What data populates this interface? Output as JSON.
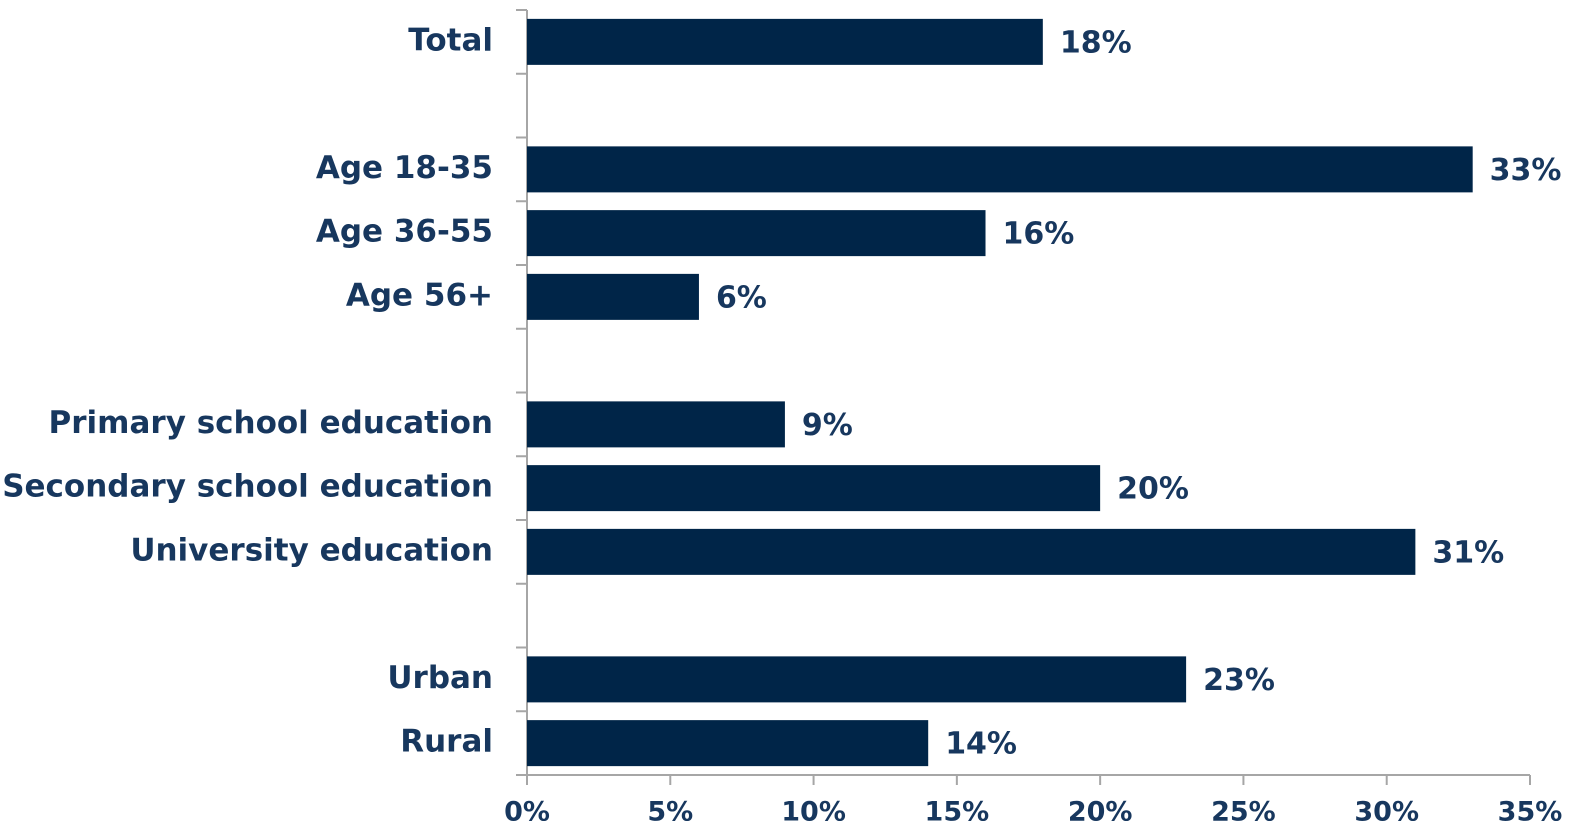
{
  "chart_data": {
    "type": "bar",
    "orientation": "horizontal",
    "categories": [
      "Total",
      null,
      "Age 18-35",
      "Age 36-55",
      "Age 56+",
      null,
      "Primary school education",
      "Secondary school education",
      "University education",
      null,
      "Urban",
      "Rural"
    ],
    "values": [
      18,
      null,
      33,
      16,
      6,
      null,
      9,
      20,
      31,
      null,
      23,
      14
    ],
    "value_labels": [
      "18%",
      null,
      "33%",
      "16%",
      "6%",
      null,
      "9%",
      "20%",
      "31%",
      null,
      "23%",
      "14%"
    ],
    "color": "#002548",
    "xlim": [
      0,
      35
    ],
    "xticks": [
      {
        "value": 0,
        "label": "0%"
      },
      {
        "value": 5,
        "label": "5%"
      },
      {
        "value": 10,
        "label": "10%"
      },
      {
        "value": 15,
        "label": "15%"
      },
      {
        "value": 20,
        "label": "20%"
      },
      {
        "value": 25,
        "label": "25%"
      },
      {
        "value": 30,
        "label": "30%"
      },
      {
        "value": 35,
        "label": "35%"
      }
    ]
  }
}
